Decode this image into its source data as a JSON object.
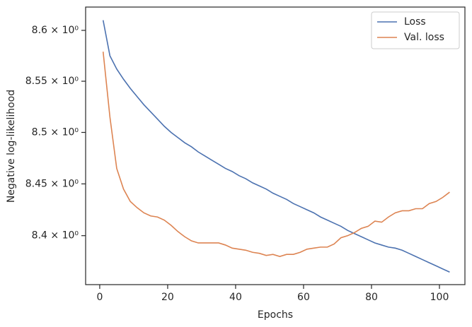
{
  "chart_data": {
    "type": "line",
    "xlabel": "Epochs",
    "ylabel": "Negative log-likelihood",
    "x": [
      1,
      3,
      5,
      7,
      9,
      11,
      13,
      15,
      17,
      19,
      21,
      23,
      25,
      27,
      29,
      31,
      33,
      35,
      37,
      39,
      41,
      43,
      45,
      47,
      49,
      51,
      53,
      55,
      57,
      59,
      61,
      63,
      65,
      67,
      69,
      71,
      73,
      75,
      77,
      79,
      81,
      83,
      85,
      87,
      89,
      91,
      93,
      95,
      97,
      99,
      101,
      103
    ],
    "series": [
      {
        "name": "Loss",
        "color": "#4c72b0",
        "values": [
          8.61,
          8.575,
          8.562,
          8.552,
          8.543,
          8.535,
          8.527,
          8.52,
          8.513,
          8.506,
          8.5,
          8.495,
          8.49,
          8.486,
          8.481,
          8.477,
          8.473,
          8.469,
          8.465,
          8.462,
          8.458,
          8.455,
          8.451,
          8.448,
          8.445,
          8.441,
          8.438,
          8.435,
          8.431,
          8.428,
          8.425,
          8.422,
          8.418,
          8.415,
          8.412,
          8.409,
          8.405,
          8.402,
          8.399,
          8.396,
          8.393,
          8.391,
          8.389,
          8.388,
          8.386,
          8.383,
          8.38,
          8.377,
          8.374,
          8.371,
          8.368,
          8.365
        ]
      },
      {
        "name": "Val. loss",
        "color": "#dd8452",
        "values": [
          8.579,
          8.515,
          8.465,
          8.445,
          8.433,
          8.427,
          8.422,
          8.419,
          8.418,
          8.415,
          8.41,
          8.404,
          8.399,
          8.395,
          8.393,
          8.393,
          8.393,
          8.393,
          8.391,
          8.388,
          8.387,
          8.386,
          8.384,
          8.383,
          8.381,
          8.382,
          8.38,
          8.382,
          8.382,
          8.384,
          8.387,
          8.388,
          8.389,
          8.389,
          8.392,
          8.398,
          8.4,
          8.403,
          8.407,
          8.409,
          8.414,
          8.413,
          8.418,
          8.422,
          8.424,
          8.424,
          8.426,
          8.426,
          8.431,
          8.433,
          8.437,
          8.442
        ]
      }
    ],
    "xlim": [
      -4.15,
      107.5
    ],
    "xticks": [
      0,
      20,
      40,
      60,
      80,
      100
    ],
    "ylim": [
      8.353,
      8.623
    ],
    "ylog": true,
    "yticks": [
      {
        "value": 8.4,
        "label": "8.4 × 10⁰"
      },
      {
        "value": 8.45,
        "label": "8.45 × 10⁰"
      },
      {
        "value": 8.5,
        "label": "8.5 × 10⁰"
      },
      {
        "value": 8.55,
        "label": "8.55 × 10⁰"
      },
      {
        "value": 8.6,
        "label": "8.6 × 10⁰"
      }
    ],
    "legend": "upper right"
  }
}
